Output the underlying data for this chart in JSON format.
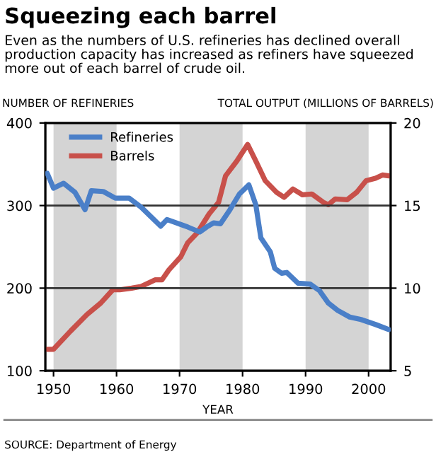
{
  "chart_data": {
    "type": "line",
    "title": "Squeezing each barrel",
    "subtitle": "Even as the numbers of U.S. refineries has declined overall production capacity has increased as refiners have squeezed more out of each barrel of crude oil.",
    "xlabel": "YEAR",
    "ylabel": "NUMBER OF REFINERIES",
    "y2label": "TOTAL OUTPUT (MILLIONS OF BARRELS)",
    "annotations": [
      "SOURCE: Department of Energy"
    ],
    "xlim": [
      1948.7,
      2003.5
    ],
    "xticks": [
      1950,
      1960,
      1970,
      1980,
      1990,
      2000
    ],
    "ylim": [
      100,
      400
    ],
    "yticks": [
      100,
      200,
      300,
      400
    ],
    "y2lim": [
      5,
      20
    ],
    "y2ticks": [
      5,
      10,
      15,
      20
    ],
    "grid": "y",
    "legend": "top left",
    "line_style": "solid",
    "marker": "none",
    "bands": [
      {
        "axis": "x",
        "from": 1950,
        "to": 1960,
        "color": "#d4d4d4"
      },
      {
        "axis": "x",
        "from": 1970,
        "to": 1980,
        "color": "#d4d4d4"
      },
      {
        "axis": "x",
        "from": 1990,
        "to": 2000,
        "color": "#d4d4d4"
      }
    ],
    "series": [
      {
        "name": "Refineries",
        "color": "#4a7fc8",
        "x": [
          1949,
          1950,
          1951.6,
          1953.4,
          1955,
          1956,
          1957.9,
          1959.8,
          1962,
          1963.9,
          1965.4,
          1967,
          1968,
          1969.5,
          1971.3,
          1973.2,
          1974.3,
          1975.4,
          1976.5,
          1978,
          1979.5,
          1981,
          1982.1,
          1982.9,
          1984.4,
          1985.1,
          1986.2,
          1987,
          1988.8,
          1990.7,
          1992.2,
          1993.6,
          1995.1,
          1997,
          1998.8,
          2001.1,
          2003.2
        ],
        "values": [
          339,
          321,
          327,
          316,
          295,
          318,
          317,
          309,
          309,
          298,
          287,
          275,
          283,
          279,
          274,
          268,
          274,
          279,
          278,
          295,
          314,
          325,
          301,
          261,
          244,
          224,
          218,
          219,
          206,
          205,
          197,
          182,
          173,
          165,
          162,
          156,
          150
        ]
      },
      {
        "name": "Barrels",
        "color": "#c8504a",
        "axis": "y2",
        "x": [
          1949,
          1950,
          1952.7,
          1955.3,
          1957.5,
          1959.4,
          1960.5,
          1962.4,
          1963.9,
          1966.1,
          1967.2,
          1968.3,
          1970.2,
          1971.3,
          1972.8,
          1974.7,
          1976.2,
          1977.3,
          1979.1,
          1980.8,
          1982.1,
          1983.6,
          1985.4,
          1986.6,
          1988,
          1989.5,
          1991,
          1992.8,
          1993.6,
          1994.7,
          1996.6,
          1998.1,
          1999.6,
          2001.1,
          2002.2,
          2003.2
        ],
        "values": [
          6.3,
          6.3,
          7.4,
          8.4,
          9.1,
          9.9,
          9.9,
          10.0,
          10.1,
          10.5,
          10.5,
          11.1,
          11.9,
          12.75,
          13.35,
          14.5,
          15.2,
          16.8,
          17.7,
          18.7,
          17.7,
          16.5,
          15.8,
          15.5,
          16.0,
          15.65,
          15.7,
          15.2,
          15.05,
          15.4,
          15.35,
          15.8,
          16.5,
          16.65,
          16.85,
          16.8
        ]
      }
    ]
  }
}
